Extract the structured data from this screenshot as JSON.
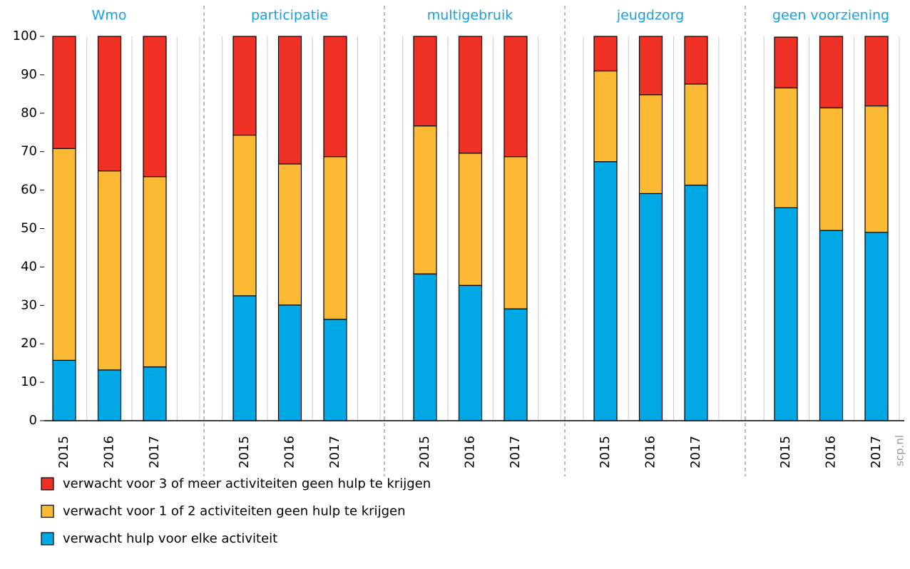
{
  "chart_data": {
    "type": "stacked-bar",
    "groups": [
      {
        "name": "Wmo",
        "categories": [
          "2015",
          "2016",
          "2017"
        ]
      },
      {
        "name": "participatie",
        "categories": [
          "2015",
          "2016",
          "2017"
        ]
      },
      {
        "name": "multigebruik",
        "categories": [
          "2015",
          "2016",
          "2017"
        ]
      },
      {
        "name": "jeugdzorg",
        "categories": [
          "2015",
          "2016",
          "2017"
        ]
      },
      {
        "name": "geen voorziening",
        "categories": [
          "2015",
          "2016",
          "2017"
        ]
      }
    ],
    "series": [
      {
        "name": "verwacht hulp voor elke activiteit",
        "color": "#00a9e6",
        "values": [
          15.7,
          13.2,
          14,
          32.5,
          30.1,
          26.4,
          38.2,
          35.2,
          29.1,
          67.4,
          59.1,
          61.3,
          55.4,
          49.5,
          49
        ]
      },
      {
        "name": "verwacht voor 1 of 2 activiteiten geen hulp te krijgen",
        "color": "#fbb934",
        "values": [
          55.1,
          51.8,
          49.5,
          41.8,
          36.7,
          42.3,
          38.5,
          34.4,
          39.6,
          23.6,
          25.7,
          26.3,
          31.2,
          31.9,
          32.9
        ]
      },
      {
        "name": "verwacht voor 3 of meer activiteiten geen hulp te krijgen",
        "color": "#ee3124",
        "values": [
          29.2,
          35,
          36.5,
          25.7,
          33.2,
          31.3,
          23.3,
          30.4,
          31.3,
          9,
          15.2,
          12.4,
          13.2,
          18.6,
          18.1
        ]
      }
    ],
    "ylim": [
      0,
      100
    ],
    "yticks": [
      0,
      10,
      20,
      30,
      40,
      50,
      60,
      70,
      80,
      90,
      100
    ],
    "source": "scp.nl"
  }
}
